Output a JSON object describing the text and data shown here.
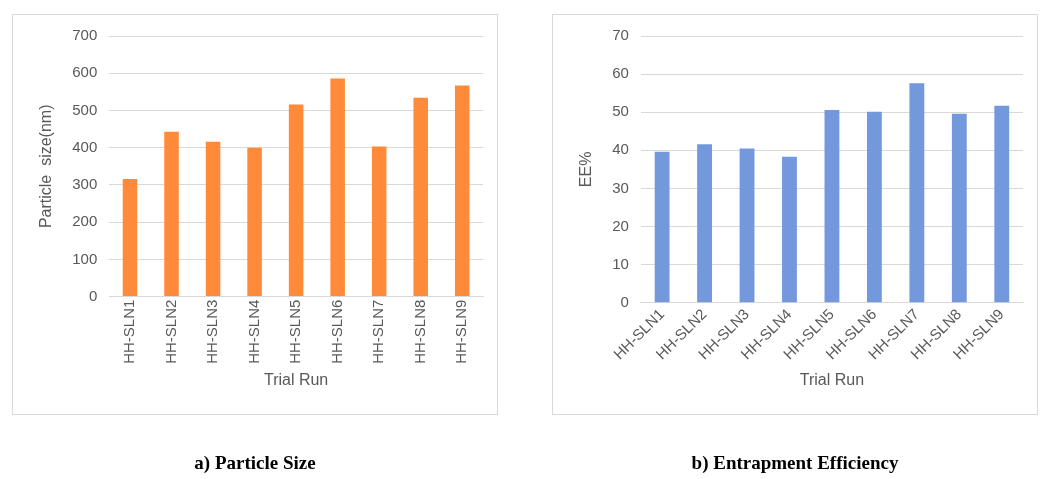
{
  "chart_data": [
    {
      "type": "bar",
      "xlabel": "Trial Run",
      "ylabel": "Particle  size(nm)",
      "categories": [
        "HH-SLN1",
        "HH-SLN2",
        "HH-SLN3",
        "HH-SLN4",
        "HH-SLN5",
        "HH-SLN6",
        "HH-SLN7",
        "HH-SLN8",
        "HH-SLN9"
      ],
      "values": [
        316,
        443,
        416,
        400,
        516,
        586,
        403,
        534,
        567
      ],
      "color": "#ff8a3a",
      "ylim": [
        0,
        700
      ],
      "yticks": [
        0,
        100,
        200,
        300,
        400,
        500,
        600,
        700
      ],
      "grid": "y",
      "annotations": [
        "a) Particle Size"
      ]
    },
    {
      "type": "bar",
      "xlabel": "Trial Run",
      "ylabel": "EE%",
      "categories": [
        "HH-SLN1",
        "HH-SLN2",
        "HH-SLN3",
        "HH-SLN4",
        "HH-SLN5",
        "HH-SLN6",
        "HH-SLN7",
        "HH-SLN8",
        "HH-SLN9"
      ],
      "values": [
        39.6,
        41.6,
        40.5,
        38.3,
        50.6,
        50.1,
        57.6,
        49.6,
        51.7
      ],
      "color": "#7399dc",
      "ylim": [
        0,
        70
      ],
      "yticks": [
        0,
        10,
        20,
        30,
        40,
        50,
        60,
        70
      ],
      "grid": "y",
      "annotations": [
        "b) Entrapment Efficiency"
      ]
    }
  ]
}
